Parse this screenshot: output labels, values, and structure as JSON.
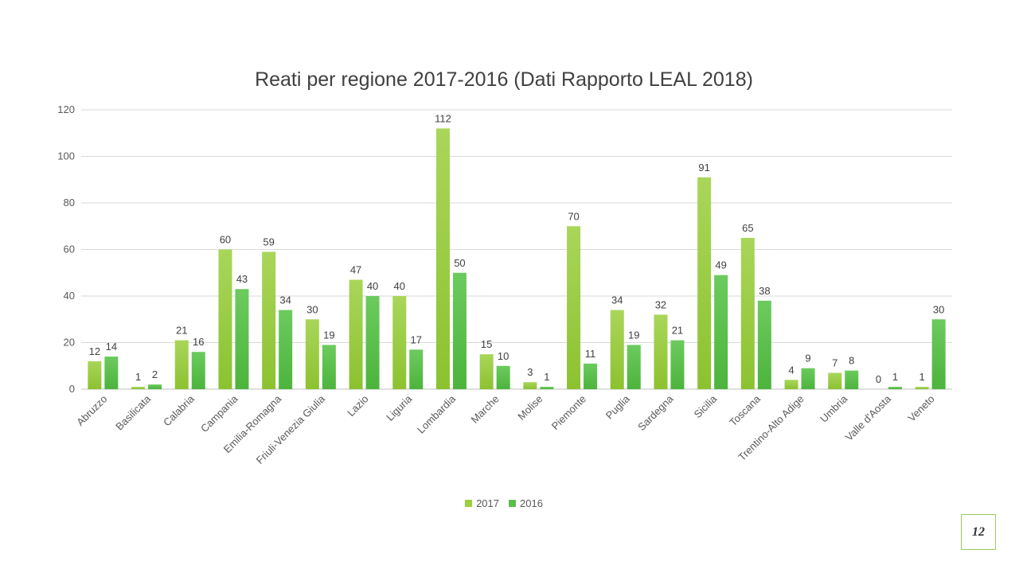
{
  "slide": {
    "page_number": "12"
  },
  "chart_data": {
    "type": "bar",
    "title": "Reati per regione 2017-2016 (Dati Rapporto LEAL 2018)",
    "xlabel": "",
    "ylabel": "",
    "ylim": [
      0,
      120
    ],
    "yticks": [
      0,
      20,
      40,
      60,
      80,
      100,
      120
    ],
    "grid": true,
    "legend_position": "bottom",
    "categories": [
      "Abruzzo",
      "Basilicata",
      "Calabria",
      "Campania",
      "Emilia-Romagna",
      "Friuli-Venezia Giulia",
      "Lazio",
      "Liguria",
      "Lombardia",
      "Marche",
      "Molise",
      "Piemonte",
      "Puglia",
      "Sardegna",
      "Sicilia",
      "Toscana",
      "Trentino-Alto Adige",
      "Umbria",
      "Valle d'Aosta",
      "Veneto"
    ],
    "series": [
      {
        "name": "2017",
        "color": "#9ccf3e",
        "values": [
          12,
          1,
          21,
          60,
          59,
          30,
          47,
          40,
          112,
          15,
          3,
          70,
          34,
          32,
          91,
          65,
          4,
          7,
          0,
          1
        ]
      },
      {
        "name": "2016",
        "color": "#5cbf4c",
        "values": [
          14,
          2,
          16,
          43,
          34,
          19,
          40,
          17,
          50,
          10,
          1,
          11,
          19,
          21,
          49,
          38,
          9,
          8,
          1,
          30
        ]
      }
    ]
  }
}
